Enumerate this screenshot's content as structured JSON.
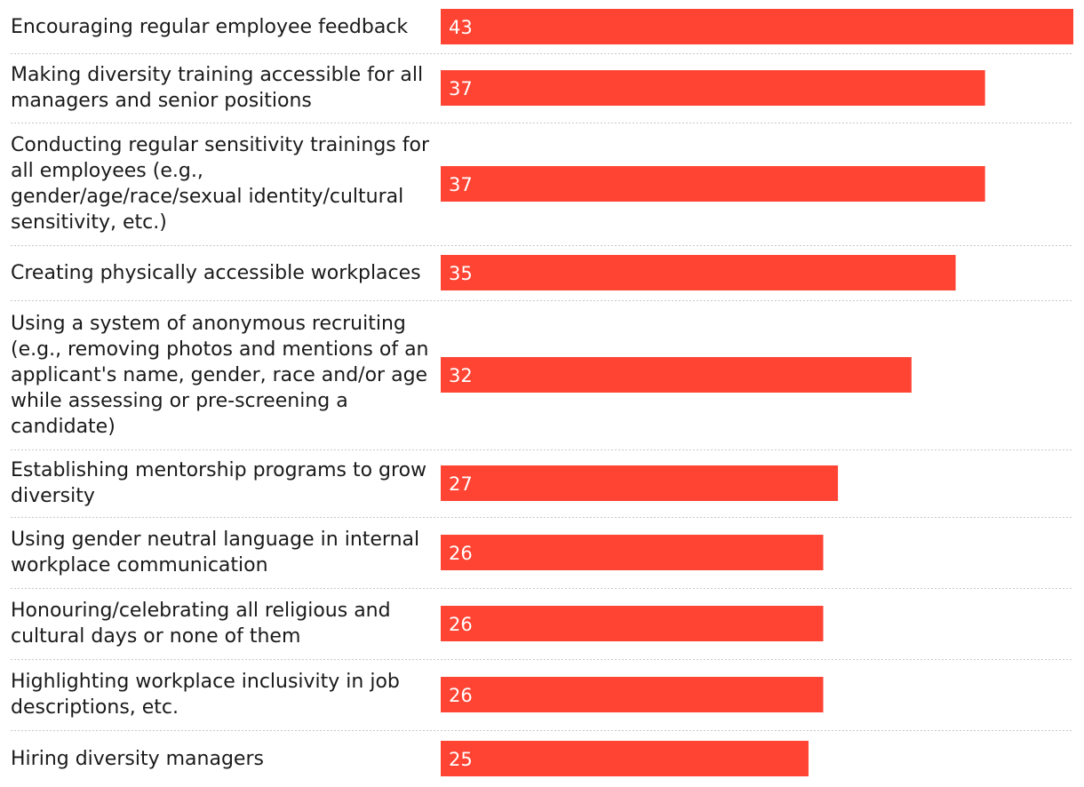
{
  "chart_data": {
    "type": "bar",
    "orientation": "horizontal",
    "title": "",
    "xlabel": "",
    "ylabel": "",
    "xlim": [
      0,
      43
    ],
    "grid": false,
    "legend": "none",
    "bar_color": "#ff4433",
    "label_color": "#1a1a1a",
    "value_color": "#ffffff",
    "separator_color": "#c8c8c8",
    "categories": [
      "Encouraging regular employee feedback",
      "Making diversity training accessible for all managers and senior positions",
      "Conducting regular sensitivity trainings for all employees (e.g., gender/age/race/sexual identity/cultural sensitivity, etc.)",
      "Creating physically accessible workplaces",
      "Using a system of anonymous recruiting (e.g., removing photos and mentions of an applicant's name, gender, race and/or age while assessing or pre-screening a candidate)",
      "Establishing mentorship programs to grow diversity",
      "Using gender neutral language in internal workplace communication",
      "Honouring/celebrating all religious and cultural days or none of them",
      "Highlighting workplace inclusivity in job descriptions, etc.",
      "Hiring diversity managers"
    ],
    "values": [
      43,
      37,
      37,
      35,
      32,
      27,
      26,
      26,
      26,
      25
    ]
  }
}
